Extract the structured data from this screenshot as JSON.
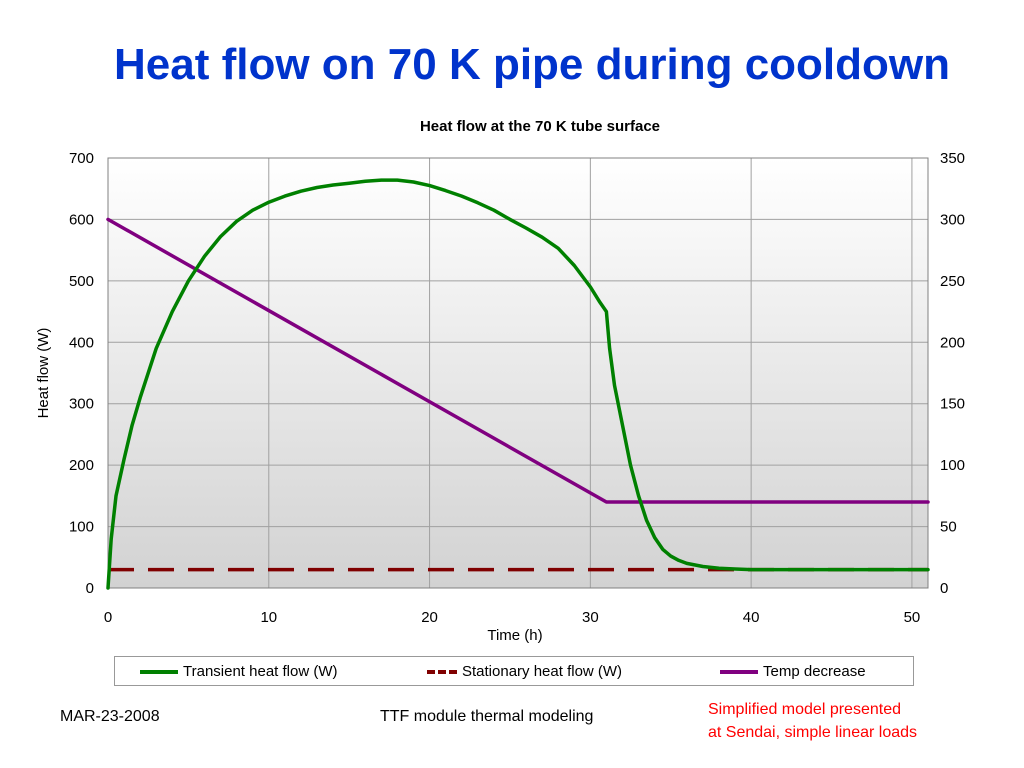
{
  "slide": {
    "title": "Heat flow on 70 K pipe during cooldown",
    "footer_date": "MAR-23-2008",
    "footer_center": "TTF module thermal modeling",
    "note_line1": "Simplified model presented",
    "note_line2": "at Sendai, simple linear loads"
  },
  "colors": {
    "title": "#0033cc",
    "transient": "#008000",
    "stationary": "#800000",
    "temp": "#800080",
    "note": "#ff0000"
  },
  "chart_data": {
    "type": "line",
    "title": "Heat flow at the 70 K tube surface",
    "xlabel": "Time (h)",
    "ylabel": "Heat flow (W)",
    "xlim": [
      0,
      51
    ],
    "ylim": [
      0,
      700
    ],
    "y2lim": [
      0,
      350
    ],
    "x_ticks": [
      0,
      10,
      20,
      30,
      40,
      50
    ],
    "y_ticks": [
      0,
      100,
      200,
      300,
      400,
      500,
      600,
      700
    ],
    "y2_ticks": [
      0,
      50,
      100,
      150,
      200,
      250,
      300,
      350
    ],
    "grid": true,
    "legend_position": "bottom",
    "series": [
      {
        "name": "Transient heat flow (W)",
        "axis": "left",
        "style": "solid",
        "x": [
          0,
          0.2,
          0.5,
          1,
          1.5,
          2,
          3,
          4,
          5,
          6,
          7,
          8,
          9,
          10,
          11,
          12,
          13,
          14,
          15,
          16,
          17,
          18,
          19,
          20,
          21,
          22,
          23,
          24,
          25,
          26,
          27,
          28,
          29,
          30,
          30.6,
          31,
          31.2,
          31.5,
          32,
          32.5,
          33,
          33.5,
          34,
          34.5,
          35,
          35.5,
          36,
          37,
          38,
          39,
          40,
          42,
          45,
          48,
          51
        ],
        "y": [
          0,
          80,
          150,
          210,
          265,
          310,
          390,
          450,
          500,
          540,
          572,
          597,
          615,
          628,
          638,
          646,
          652,
          656,
          659,
          662,
          664,
          664,
          661,
          655,
          647,
          638,
          627,
          615,
          600,
          586,
          571,
          553,
          525,
          490,
          465,
          450,
          390,
          330,
          265,
          200,
          150,
          110,
          82,
          63,
          52,
          45,
          40,
          35,
          32,
          31,
          30,
          30,
          30,
          30,
          30
        ]
      },
      {
        "name": "Stationary heat flow (W)",
        "axis": "left",
        "style": "dashed",
        "x": [
          0,
          51
        ],
        "y": [
          30,
          30
        ]
      },
      {
        "name": "Temp decrease",
        "axis": "right",
        "style": "solid",
        "x": [
          0,
          31,
          51
        ],
        "y": [
          300,
          70,
          70
        ]
      }
    ]
  }
}
